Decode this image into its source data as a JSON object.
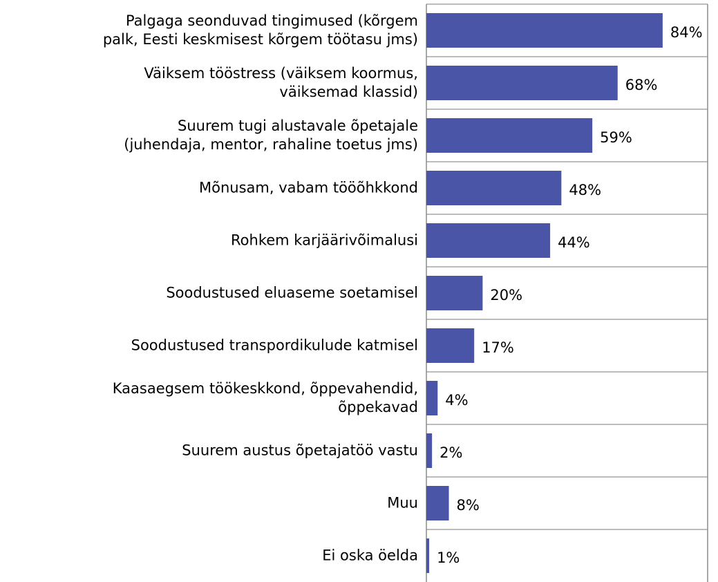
{
  "chart_data": {
    "type": "hbar",
    "categories": [
      "Palgaga seonduvad tingimused (kõrgem\npalk, Eesti keskmisest kõrgem töötasu jms)",
      "Väiksem tööstress (väiksem koormus,\nväiksemad klassid)",
      "Suurem tugi alustavale õpetajale\n(juhendaja, mentor, rahaline toetus jms)",
      "Mõnusam, vabam tööõhkkond",
      "Rohkem karjäärivõimalusi",
      "Soodustused eluaseme soetamisel",
      "Soodustused transpordikulude katmisel",
      "Kaasaegsem töökeskkond, õppevahendid,\nõppekavad",
      "Suurem austus õpetajatöö vastu",
      "Muu",
      "Ei oska öelda"
    ],
    "values": [
      84,
      68,
      59,
      48,
      44,
      20,
      17,
      4,
      2,
      8,
      1
    ],
    "value_labels": [
      "84%",
      "68%",
      "59%",
      "48%",
      "44%",
      "20%",
      "17%",
      "4%",
      "2%",
      "8%",
      "1%"
    ],
    "color": "#4a55a8",
    "xlim": [
      0,
      100
    ]
  }
}
